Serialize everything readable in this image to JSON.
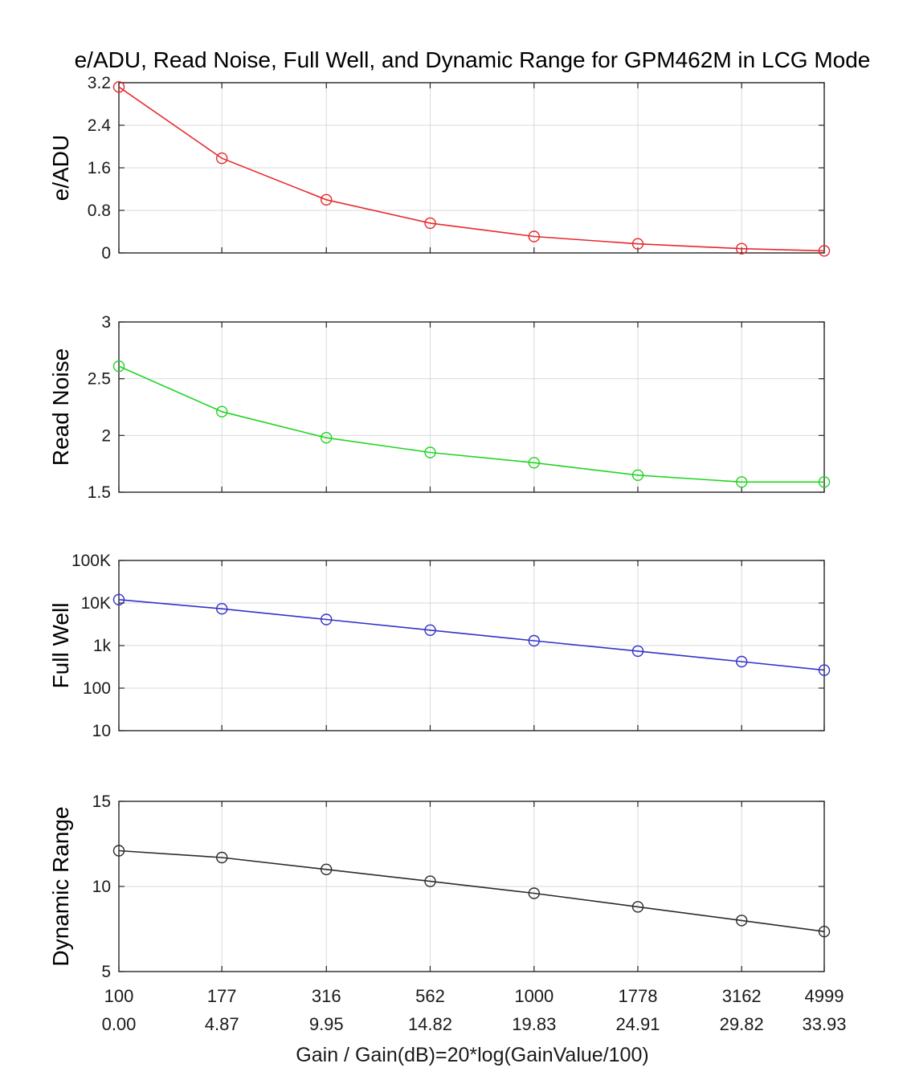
{
  "chart_data": {
    "type": "line",
    "title": "e/ADU, Read Noise, Full Well, and Dynamic Range for GPM462M in LCG Mode",
    "xlabel": "Gain / Gain(dB)=20*log(GainValue/100)",
    "x_scale": "log",
    "x": [
      100,
      177,
      316,
      562,
      1000,
      1778,
      3162,
      4999
    ],
    "x_tick_labels_gain": [
      "100",
      "177",
      "316",
      "562",
      "1000",
      "1778",
      "3162",
      "4999"
    ],
    "x_tick_labels_db": [
      "0.00",
      "4.87",
      "9.95",
      "14.82",
      "19.83",
      "24.91",
      "29.82",
      "33.93"
    ],
    "grid": true,
    "legend": "none",
    "marker": "open-circle",
    "subplots": [
      {
        "ylabel": "e/ADU",
        "color": "#e8282d",
        "y_scale": "linear",
        "ylim": [
          0,
          3.2
        ],
        "yticks": [
          0,
          0.8,
          1.6,
          2.4,
          3.2
        ],
        "ytick_labels": [
          "0",
          "0.8",
          "1.6",
          "2.4",
          "3.2"
        ],
        "values": [
          3.12,
          1.78,
          1.0,
          0.56,
          0.31,
          0.17,
          0.08,
          0.04
        ]
      },
      {
        "ylabel": "Read Noise",
        "color": "#22d422",
        "y_scale": "linear",
        "ylim": [
          1.5,
          3
        ],
        "yticks": [
          1.5,
          2,
          2.5,
          3
        ],
        "ytick_labels": [
          "1.5",
          "2",
          "2.5",
          "3"
        ],
        "values": [
          2.61,
          2.21,
          1.98,
          1.85,
          1.76,
          1.65,
          1.59,
          1.59
        ]
      },
      {
        "ylabel": "Full Well",
        "color": "#3431c8",
        "y_scale": "log",
        "ylim": [
          10,
          100000
        ],
        "yticks": [
          10,
          100,
          1000,
          10000,
          100000
        ],
        "ytick_labels": [
          "10",
          "100",
          "1k",
          "10K",
          "100K"
        ],
        "values": [
          12000,
          7300,
          4100,
          2300,
          1300,
          740,
          420,
          265
        ]
      },
      {
        "ylabel": "Dynamic Range",
        "color": "#2b2b2b",
        "y_scale": "linear",
        "ylim": [
          5,
          15
        ],
        "yticks": [
          5,
          10,
          15
        ],
        "ytick_labels": [
          "5",
          "10",
          "15"
        ],
        "values": [
          12.1,
          11.7,
          11.0,
          10.3,
          9.6,
          8.8,
          8.0,
          7.35
        ]
      }
    ]
  }
}
